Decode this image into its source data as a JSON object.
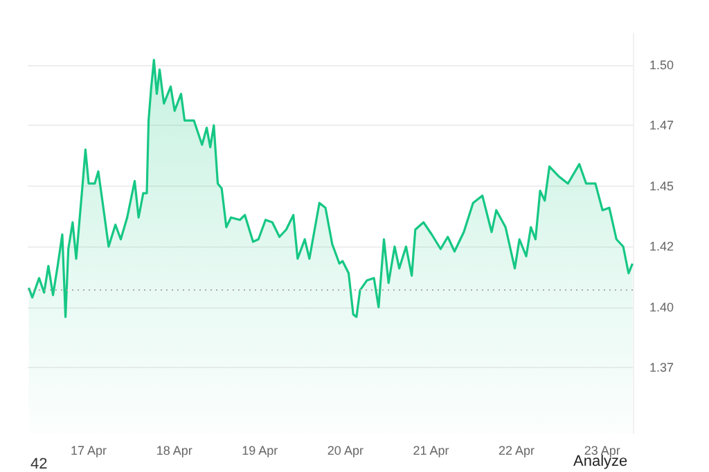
{
  "chart_data": {
    "type": "area",
    "x": [
      "--04-16T07:12",
      "--04-16T08:12",
      "--04-16T10:06",
      "--04-16T11:30",
      "--04-16T12:42",
      "--04-16T14:00",
      "--04-16T15:18",
      "--04-16T16:36",
      "--04-16T17:30",
      "--04-16T18:18",
      "--04-16T19:30",
      "--04-16T20:30",
      "--04-16T22:12",
      "--04-16T23:06",
      "--04-17T00:00",
      "--04-17T01:42",
      "--04-17T02:42",
      "--04-17T04:18",
      "--04-17T05:36",
      "--04-17T07:30",
      "--04-17T09:00",
      "--04-17T10:48",
      "--04-17T12:54",
      "--04-17T14:00",
      "--04-17T15:18",
      "--04-17T16:18",
      "--04-17T16:48",
      "--04-17T17:30",
      "--04-17T18:18",
      "--04-17T19:06",
      "--04-17T19:54",
      "--04-17T21:06",
      "--04-17T23:00",
      "--04-18T00:06",
      "--04-18T01:54",
      "--04-18T02:54",
      "--04-18T05:30",
      "--04-18T07:48",
      "--04-18T09:06",
      "--04-18T10:06",
      "--04-18T11:06",
      "--04-18T12:12",
      "--04-18T13:18",
      "--04-18T14:36",
      "--04-18T15:54",
      "--04-18T18:24",
      "--04-18T19:48",
      "--04-18T22:06",
      "--04-18T23:36",
      "--04-19T01:36",
      "--04-19T03:30",
      "--04-19T05:30",
      "--04-19T07:24",
      "--04-19T09:24",
      "--04-19T10:36",
      "--04-19T12:36",
      "--04-19T13:54",
      "--04-19T16:42",
      "--04-19T18:24",
      "--04-19T20:18",
      "--04-19T22:18",
      "--04-19T23:12",
      "--04-20T00:54",
      "--04-20T02:12",
      "--04-20T03:06",
      "--04-20T04:06",
      "--04-20T06:00",
      "--04-20T08:00",
      "--04-20T09:18",
      "--04-20T10:48",
      "--04-20T12:06",
      "--04-20T13:48",
      "--04-20T15:06",
      "--04-20T17:00",
      "--04-20T18:36",
      "--04-20T19:36",
      "--04-20T21:54",
      "--04-21T00:12",
      "--04-21T02:42",
      "--04-21T04:42",
      "--04-21T06:36",
      "--04-21T09:12",
      "--04-21T11:48",
      "--04-21T14:24",
      "--04-21T17:00",
      "--04-21T18:18",
      "--04-21T20:54",
      "--04-21T23:30",
      "--04-22T00:48",
      "--04-22T02:42",
      "--04-22T04:00",
      "--04-22T05:18",
      "--04-22T06:36",
      "--04-22T07:54",
      "--04-22T09:12",
      "--04-22T11:48",
      "--04-22T14:24",
      "--04-22T17:36",
      "--04-22T19:30",
      "--04-22T22:06",
      "--04-23T00:06",
      "--04-23T02:00",
      "--04-23T04:00",
      "--04-23T05:54",
      "--04-23T07:24",
      "--04-23T08:30"
    ],
    "series": [
      {
        "color": "#16c784",
        "values": [
          1.408,
          1.404,
          1.412,
          1.406,
          1.417,
          1.405,
          1.417,
          1.43,
          1.396,
          1.424,
          1.435,
          1.42,
          1.449,
          1.465,
          1.451,
          1.451,
          1.456,
          1.439,
          1.425,
          1.434,
          1.428,
          1.437,
          1.452,
          1.437,
          1.447,
          1.447,
          1.477,
          1.49,
          1.502,
          1.488,
          1.498,
          1.484,
          1.491,
          1.481,
          1.488,
          1.477,
          1.477,
          1.467,
          1.474,
          1.466,
          1.475,
          1.451,
          1.449,
          1.433,
          1.437,
          1.436,
          1.438,
          1.427,
          1.428,
          1.436,
          1.435,
          1.429,
          1.432,
          1.438,
          1.42,
          1.428,
          1.42,
          1.443,
          1.441,
          1.426,
          1.418,
          1.419,
          1.414,
          1.397,
          1.396,
          1.407,
          1.411,
          1.412,
          1.4,
          1.428,
          1.41,
          1.425,
          1.416,
          1.425,
          1.413,
          1.432,
          1.435,
          1.43,
          1.424,
          1.429,
          1.423,
          1.431,
          1.443,
          1.446,
          1.431,
          1.44,
          1.433,
          1.416,
          1.428,
          1.421,
          1.433,
          1.428,
          1.448,
          1.444,
          1.458,
          1.454,
          1.451,
          1.459,
          1.451,
          1.451,
          1.44,
          1.441,
          1.428,
          1.425,
          1.414,
          1.418
        ]
      }
    ],
    "xlim": [
      "--04-16T06:54",
      "--04-23T08:36"
    ],
    "xticks": [
      {
        "value": "--04-17",
        "label": "17 Apr"
      },
      {
        "value": "--04-18",
        "label": "18 Apr"
      },
      {
        "value": "--04-19",
        "label": "19 Apr"
      },
      {
        "value": "--04-20",
        "label": "20 Apr"
      },
      {
        "value": "--04-21",
        "label": "21 Apr"
      },
      {
        "value": "--04-22",
        "label": "22 Apr"
      },
      {
        "value": "--04-23",
        "label": "23 Apr"
      }
    ],
    "ylim": [
      1.348,
      1.513
    ],
    "yticks": [
      {
        "value": 1.375,
        "label": "1.37"
      },
      {
        "value": 1.4,
        "label": "1.40"
      },
      {
        "value": 1.425,
        "label": "1.42"
      },
      {
        "value": 1.45,
        "label": "1.45"
      },
      {
        "value": 1.475,
        "label": "1.47"
      },
      {
        "value": 1.5,
        "label": "1.50"
      }
    ],
    "grid": "y",
    "ref_lines": [
      {
        "axis": "y",
        "value": 1.407,
        "color": "#aaaaaa",
        "line_style": "dotted"
      }
    ],
    "annotations": [
      "42",
      "Analyze"
    ]
  }
}
